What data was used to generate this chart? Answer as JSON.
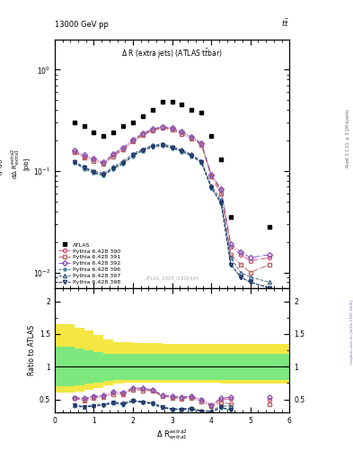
{
  "title_top": "13000 GeV pp",
  "title_top_right": "tt",
  "plot_title": "Δ R (extra jets) (ATLAS ttbar)",
  "watermark": "ATLAS_2020_I1801434",
  "atlas_x": [
    0.5,
    0.75,
    1.0,
    1.25,
    1.5,
    1.75,
    2.0,
    2.25,
    2.5,
    2.75,
    3.0,
    3.25,
    3.5,
    3.75,
    4.0,
    4.25,
    4.5,
    5.5
  ],
  "atlas_y": [
    0.3,
    0.28,
    0.24,
    0.22,
    0.24,
    0.28,
    0.3,
    0.35,
    0.4,
    0.48,
    0.48,
    0.45,
    0.4,
    0.38,
    0.22,
    0.13,
    0.035,
    0.028
  ],
  "mc_x": [
    0.5,
    0.75,
    1.0,
    1.25,
    1.5,
    1.75,
    2.0,
    2.25,
    2.5,
    2.75,
    3.0,
    3.25,
    3.5,
    3.75,
    4.0,
    4.25,
    4.5,
    4.75,
    5.0,
    5.5
  ],
  "p390_y": [
    0.155,
    0.14,
    0.13,
    0.12,
    0.145,
    0.165,
    0.2,
    0.23,
    0.255,
    0.27,
    0.26,
    0.24,
    0.215,
    0.185,
    0.09,
    0.065,
    0.018,
    0.015,
    0.013,
    0.014
  ],
  "p391_y": [
    0.155,
    0.135,
    0.125,
    0.118,
    0.14,
    0.162,
    0.195,
    0.225,
    0.25,
    0.265,
    0.255,
    0.23,
    0.21,
    0.18,
    0.088,
    0.06,
    0.015,
    0.012,
    0.01,
    0.012
  ],
  "p392_y": [
    0.16,
    0.145,
    0.132,
    0.122,
    0.148,
    0.17,
    0.205,
    0.235,
    0.26,
    0.275,
    0.265,
    0.245,
    0.218,
    0.188,
    0.093,
    0.067,
    0.019,
    0.016,
    0.014,
    0.015
  ],
  "p396_y": [
    0.12,
    0.105,
    0.095,
    0.09,
    0.105,
    0.118,
    0.14,
    0.158,
    0.172,
    0.178,
    0.168,
    0.155,
    0.14,
    0.12,
    0.068,
    0.048,
    0.012,
    0.009,
    0.008,
    0.007
  ],
  "p397_y": [
    0.125,
    0.11,
    0.1,
    0.095,
    0.11,
    0.125,
    0.148,
    0.165,
    0.18,
    0.186,
    0.175,
    0.162,
    0.146,
    0.126,
    0.072,
    0.052,
    0.014,
    0.01,
    0.009,
    0.008
  ],
  "p398_y": [
    0.122,
    0.108,
    0.097,
    0.092,
    0.107,
    0.12,
    0.143,
    0.161,
    0.175,
    0.181,
    0.17,
    0.158,
    0.142,
    0.122,
    0.069,
    0.049,
    0.012,
    0.009,
    0.008,
    0.007
  ],
  "ratio_390": [
    0.52,
    0.5,
    0.54,
    0.55,
    0.6,
    0.59,
    0.67,
    0.66,
    0.64,
    0.56,
    0.54,
    0.53,
    0.54,
    0.49,
    0.41,
    0.5,
    0.51,
    null,
    null,
    0.5
  ],
  "ratio_391": [
    0.52,
    0.48,
    0.52,
    0.54,
    0.58,
    0.58,
    0.65,
    0.64,
    0.63,
    0.55,
    0.53,
    0.51,
    0.53,
    0.47,
    0.4,
    0.46,
    0.43,
    null,
    null,
    0.43
  ],
  "ratio_392": [
    0.53,
    0.52,
    0.55,
    0.56,
    0.62,
    0.61,
    0.68,
    0.67,
    0.65,
    0.57,
    0.55,
    0.54,
    0.55,
    0.5,
    0.42,
    0.52,
    0.54,
    null,
    null,
    0.54
  ],
  "ratio_396": [
    0.4,
    0.38,
    0.4,
    0.41,
    0.44,
    0.42,
    0.47,
    0.45,
    0.43,
    0.37,
    0.35,
    0.34,
    0.35,
    0.32,
    0.31,
    0.37,
    0.34,
    null,
    null,
    0.25
  ],
  "ratio_397": [
    0.42,
    0.39,
    0.42,
    0.43,
    0.46,
    0.45,
    0.49,
    0.47,
    0.45,
    0.39,
    0.36,
    0.36,
    0.37,
    0.33,
    0.33,
    0.4,
    0.4,
    null,
    null,
    0.29
  ],
  "ratio_398": [
    0.41,
    0.39,
    0.4,
    0.42,
    0.45,
    0.43,
    0.48,
    0.46,
    0.44,
    0.38,
    0.35,
    0.35,
    0.36,
    0.32,
    0.31,
    0.38,
    0.34,
    null,
    null,
    0.25
  ],
  "band_x_edges": [
    0.0,
    0.5,
    0.75,
    1.0,
    1.25,
    1.5,
    1.75,
    2.0,
    2.25,
    2.5,
    2.75,
    3.0,
    3.25,
    3.5,
    3.75,
    4.0,
    4.25,
    4.5,
    4.75,
    5.0,
    5.5,
    6.0
  ],
  "green_band_upper": [
    1.3,
    1.28,
    1.25,
    1.22,
    1.2,
    1.2,
    1.2,
    1.2,
    1.2,
    1.2,
    1.2,
    1.2,
    1.2,
    1.2,
    1.2,
    1.2,
    1.2,
    1.2,
    1.2,
    1.2,
    1.2
  ],
  "green_band_lower": [
    0.7,
    0.72,
    0.74,
    0.76,
    0.78,
    0.8,
    0.8,
    0.8,
    0.8,
    0.8,
    0.8,
    0.8,
    0.8,
    0.8,
    0.8,
    0.8,
    0.8,
    0.8,
    0.8,
    0.8,
    0.8
  ],
  "yellow_band_upper": [
    1.65,
    1.6,
    1.55,
    1.48,
    1.42,
    1.38,
    1.37,
    1.36,
    1.36,
    1.36,
    1.35,
    1.35,
    1.35,
    1.35,
    1.35,
    1.35,
    1.35,
    1.35,
    1.35,
    1.35,
    1.35
  ],
  "yellow_band_lower": [
    0.6,
    0.62,
    0.65,
    0.68,
    0.72,
    0.74,
    0.75,
    0.75,
    0.75,
    0.75,
    0.75,
    0.75,
    0.75,
    0.75,
    0.75,
    0.75,
    0.74,
    0.74,
    0.74,
    0.74,
    0.74
  ],
  "colors": {
    "p390": "#cc5577",
    "p391": "#bb6666",
    "p392": "#8855bb",
    "p396": "#448899",
    "p397": "#446688",
    "p398": "#223366"
  },
  "xlim": [
    0,
    6
  ],
  "ylim_main": [
    0.007,
    2.0
  ],
  "ylim_ratio": [
    0.3,
    2.2
  ]
}
